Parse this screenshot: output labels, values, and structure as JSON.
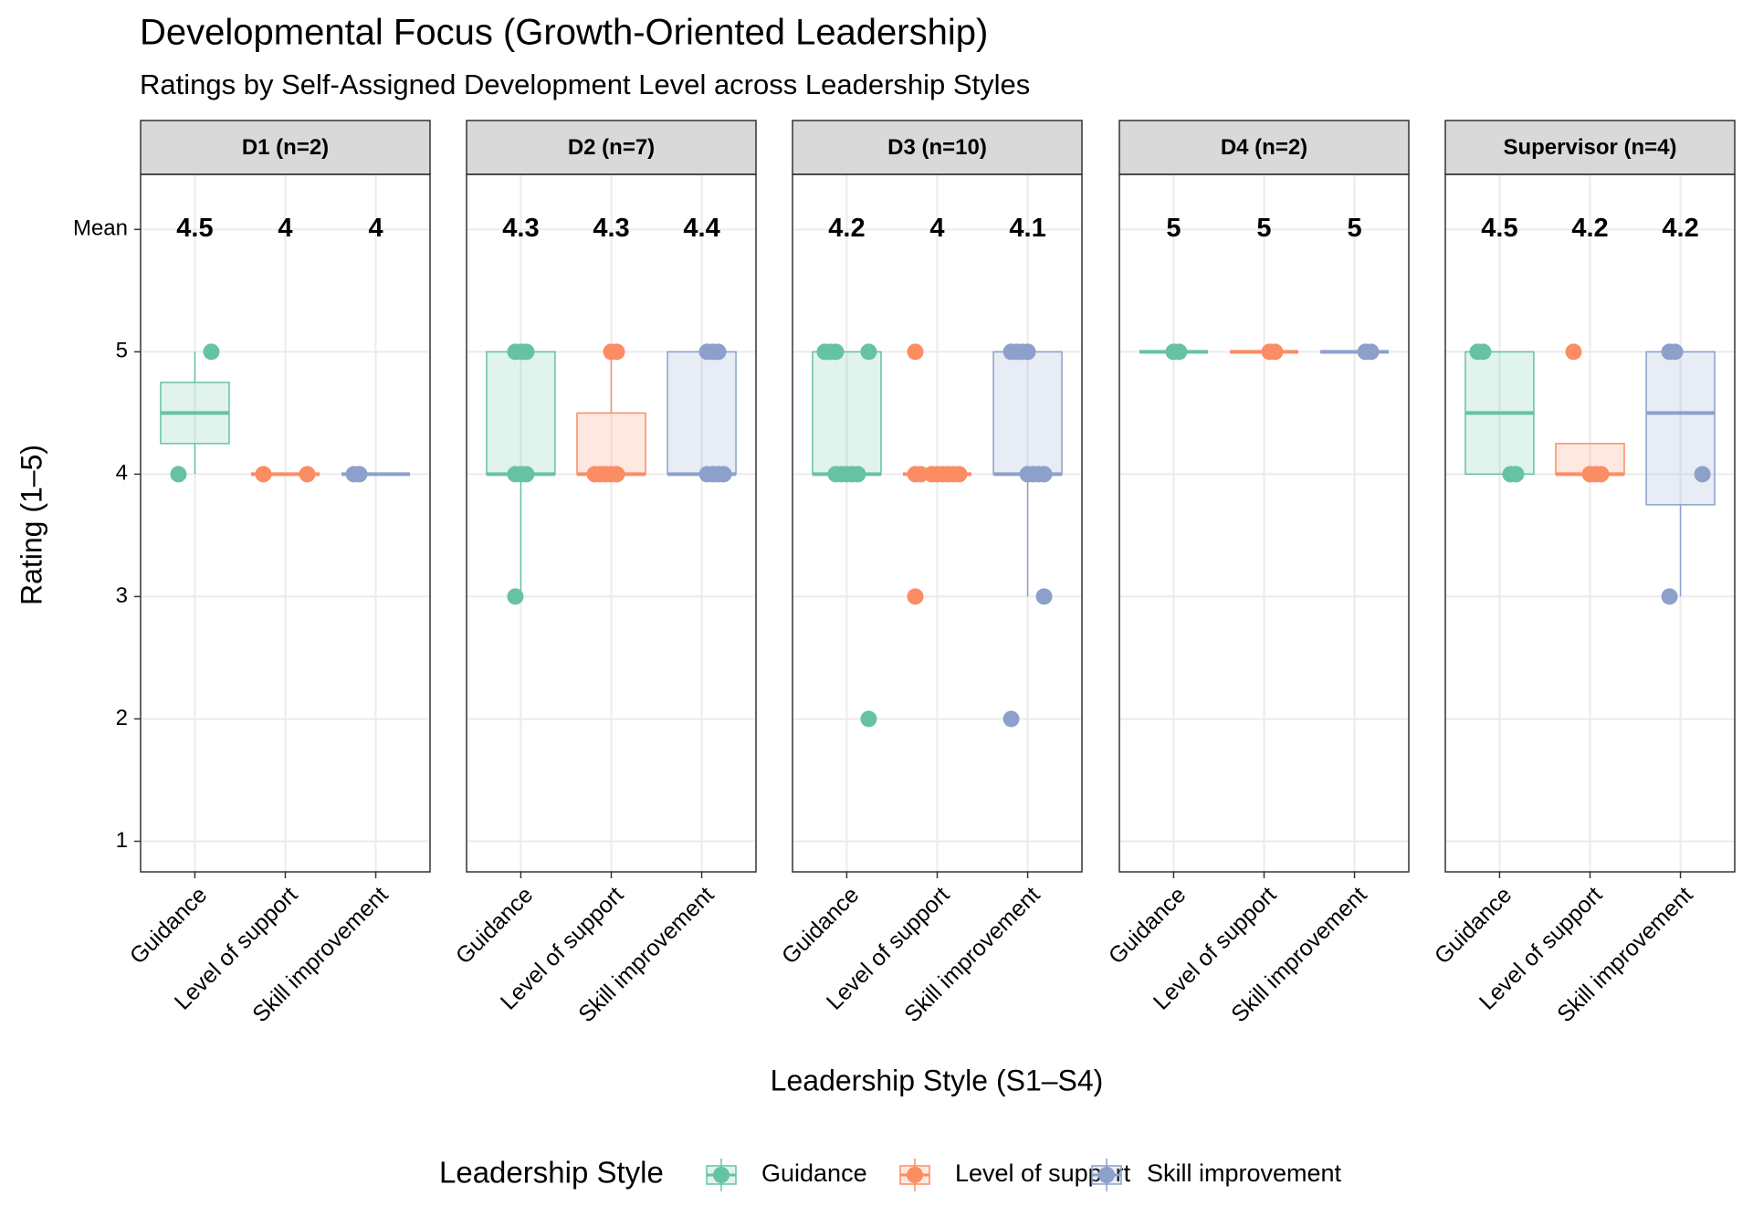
{
  "chart_data": {
    "type": "boxplot",
    "title": "Developmental Focus (Growth-Oriented Leadership)",
    "subtitle": "Ratings by Self-Assigned Development Level across Leadership Styles",
    "x_label": "Leadership Style (S1–S4)",
    "y_label": "Rating (1–5)",
    "legend_title": "Leadership Style",
    "legend_position": "bottom",
    "grid": true,
    "categories": [
      "Guidance",
      "Level of support",
      "Skill improvement"
    ],
    "colors": [
      "#66c2a5",
      "#fc8d62",
      "#8da0cb"
    ],
    "ylim": [
      0.75,
      6.45
    ],
    "yticks": [
      1,
      2,
      3,
      4,
      5,
      {
        "value": 6,
        "label": "Mean"
      }
    ],
    "facets": [
      {
        "label": "D1 (n=2)",
        "series": [
          {
            "name": "Guidance",
            "values": [
              5,
              4
            ],
            "q1": 4.25,
            "median": 4.5,
            "q3": 4.75,
            "whisker_low": 4,
            "whisker_high": 5,
            "mean": 4.5
          },
          {
            "name": "Level of support",
            "values": [
              4,
              4
            ],
            "q1": 4,
            "median": 4,
            "q3": 4,
            "whisker_low": 4,
            "whisker_high": 4,
            "mean": 4
          },
          {
            "name": "Skill improvement",
            "values": [
              4,
              4
            ],
            "q1": 4,
            "median": 4,
            "q3": 4,
            "whisker_low": 4,
            "whisker_high": 4,
            "mean": 4
          }
        ]
      },
      {
        "label": "D2 (n=7)",
        "series": [
          {
            "name": "Guidance",
            "values": [
              5,
              5,
              5,
              4,
              4,
              4,
              3
            ],
            "q1": 4,
            "median": 4,
            "q3": 5,
            "whisker_low": 3,
            "whisker_high": 5,
            "mean": 4.3
          },
          {
            "name": "Level of support",
            "values": [
              5,
              5,
              4,
              4,
              4,
              4,
              4
            ],
            "q1": 4,
            "median": 4,
            "q3": 4.5,
            "whisker_low": 4,
            "whisker_high": 5,
            "mean": 4.3
          },
          {
            "name": "Skill improvement",
            "values": [
              5,
              5,
              5,
              4,
              4,
              4,
              4
            ],
            "q1": 4,
            "median": 4,
            "q3": 5,
            "whisker_low": 4,
            "whisker_high": 5,
            "mean": 4.4
          }
        ]
      },
      {
        "label": "D3 (n=10)",
        "series": [
          {
            "name": "Guidance",
            "values": [
              5,
              5,
              5,
              5,
              4,
              4,
              4,
              4,
              4,
              2
            ],
            "q1": 4,
            "median": 4,
            "q3": 5,
            "whisker_low": 4,
            "whisker_high": 5,
            "mean": 4.2
          },
          {
            "name": "Level of support",
            "values": [
              5,
              4,
              4,
              4,
              4,
              4,
              4,
              4,
              4,
              3
            ],
            "q1": 4,
            "median": 4,
            "q3": 4,
            "whisker_low": 4,
            "whisker_high": 4,
            "mean": 4
          },
          {
            "name": "Skill improvement",
            "values": [
              5,
              5,
              5,
              5,
              4,
              4,
              4,
              4,
              3,
              2
            ],
            "q1": 4,
            "median": 4,
            "q3": 5,
            "whisker_low": 3,
            "whisker_high": 5,
            "mean": 4.1
          }
        ]
      },
      {
        "label": "D4 (n=2)",
        "series": [
          {
            "name": "Guidance",
            "values": [
              5,
              5
            ],
            "q1": 5,
            "median": 5,
            "q3": 5,
            "whisker_low": 5,
            "whisker_high": 5,
            "mean": 5
          },
          {
            "name": "Level of support",
            "values": [
              5,
              5
            ],
            "q1": 5,
            "median": 5,
            "q3": 5,
            "whisker_low": 5,
            "whisker_high": 5,
            "mean": 5
          },
          {
            "name": "Skill improvement",
            "values": [
              5,
              5
            ],
            "q1": 5,
            "median": 5,
            "q3": 5,
            "whisker_low": 5,
            "whisker_high": 5,
            "mean": 5
          }
        ]
      },
      {
        "label": "Supervisor (n=4)",
        "series": [
          {
            "name": "Guidance",
            "values": [
              5,
              5,
              4,
              4
            ],
            "q1": 4,
            "median": 4.5,
            "q3": 5,
            "whisker_low": 4,
            "whisker_high": 5,
            "mean": 4.5
          },
          {
            "name": "Level of support",
            "values": [
              5,
              4,
              4,
              4
            ],
            "q1": 4,
            "median": 4,
            "q3": 4.25,
            "whisker_low": 4,
            "whisker_high": 4.25,
            "mean": 4.2
          },
          {
            "name": "Skill improvement",
            "values": [
              5,
              5,
              4,
              3
            ],
            "q1": 3.75,
            "median": 4.5,
            "q3": 5,
            "whisker_low": 3,
            "whisker_high": 5,
            "mean": 4.2
          }
        ]
      }
    ]
  }
}
